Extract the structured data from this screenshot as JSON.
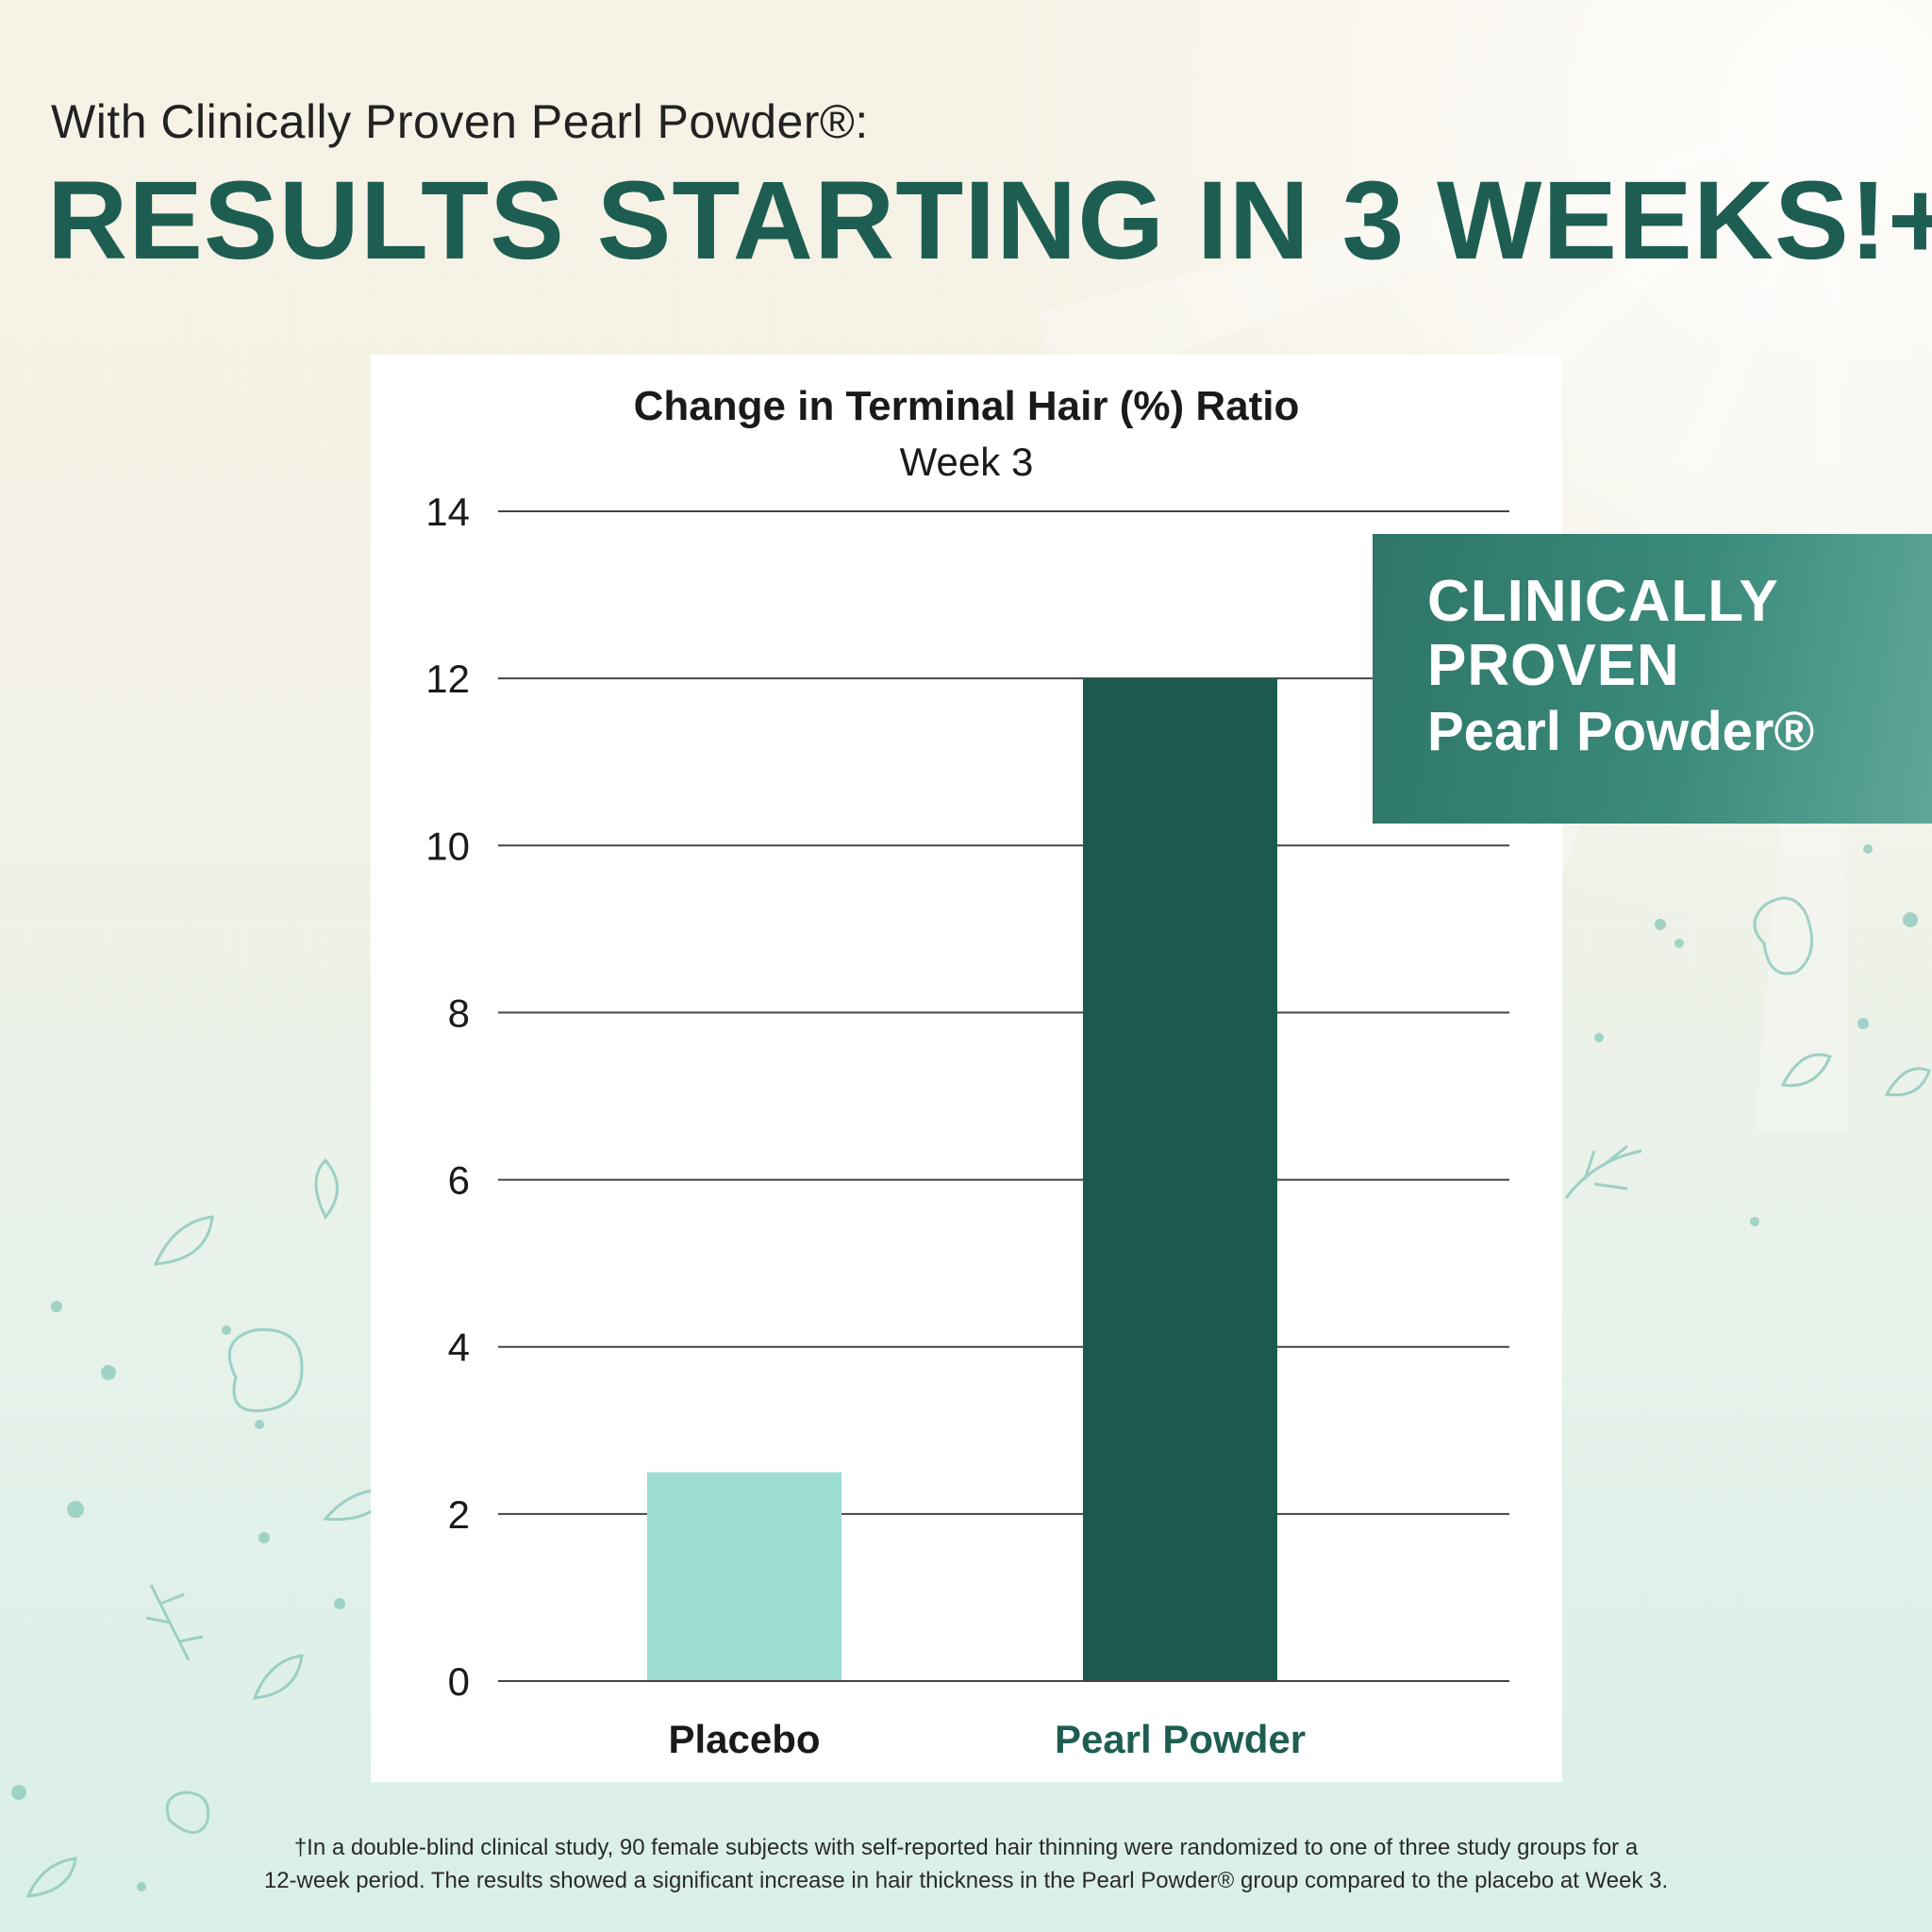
{
  "header": {
    "subtitle": "With Clinically Proven Pearl Powder®:",
    "headline": "RESULTS STARTING IN 3 WEEKS!+"
  },
  "badge": {
    "line1": "CLINICALLY",
    "line2": "PROVEN",
    "line3": "Pearl Powder®"
  },
  "colors": {
    "accent": "#1e5e52",
    "placebo_bar": "#9ddcd0",
    "pearl_bar": "#1c5a50",
    "badge": "#3a8a7a"
  },
  "chart_data": {
    "type": "bar",
    "title": "Change in Terminal Hair (%) Ratio",
    "subtitle": "Week 3",
    "xlabel": "",
    "ylabel": "",
    "categories": [
      "Placebo",
      "Pearl Powder"
    ],
    "values": [
      2.5,
      12
    ],
    "ylim": [
      0,
      14
    ],
    "yticks": [
      0,
      2,
      4,
      6,
      8,
      10,
      12,
      14
    ],
    "grid": true,
    "legend": "none"
  },
  "footnote": {
    "line1": "†In a double-blind clinical study, 90 female subjects with self-reported hair thinning were randomized to one of three study groups for a",
    "line2": "12-week period. The results showed a significant increase in hair thickness in the Pearl Powder® group compared to the placebo at Week 3."
  }
}
